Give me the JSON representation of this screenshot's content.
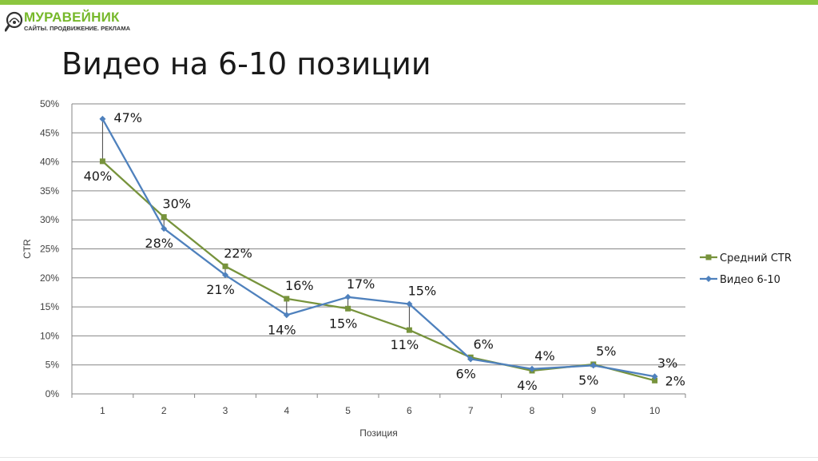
{
  "brand": {
    "name": "МУРАВЕЙНИК",
    "tagline": "САЙТЫ. ПРОДВИЖЕНИЕ. РЕКЛАМА",
    "accent_color": "#8cc63f"
  },
  "slide": {
    "title": "Видео на 6-10 позиции"
  },
  "chart_data": {
    "type": "line",
    "xlabel": "Позиция",
    "ylabel": "CTR",
    "ylim": [
      0,
      50
    ],
    "y_tick_step": 5,
    "y_unit": "%",
    "grid": true,
    "legend_position": "right",
    "categories": [
      "1",
      "2",
      "3",
      "4",
      "5",
      "6",
      "7",
      "8",
      "9",
      "10"
    ],
    "series": [
      {
        "name": "Средний CTR",
        "color": "#77933c",
        "marker": "square",
        "values": [
          40.1,
          30.5,
          22.0,
          16.4,
          14.7,
          11.0,
          6.3,
          4.0,
          5.1,
          2.3
        ],
        "labels": [
          "40%",
          "30%",
          "22%",
          "16%",
          "15%",
          "11%",
          "6%",
          "4%",
          "5%",
          "2%"
        ]
      },
      {
        "name": "Видео 6-10",
        "color": "#4f81bd",
        "marker": "diamond",
        "values": [
          47.4,
          28.5,
          20.5,
          13.6,
          16.7,
          15.5,
          6.0,
          4.3,
          4.9,
          3.0
        ],
        "labels": [
          "47%",
          "28%",
          "21%",
          "14%",
          "17%",
          "15%",
          "6%",
          "4%",
          "5%",
          "3%"
        ]
      }
    ]
  }
}
